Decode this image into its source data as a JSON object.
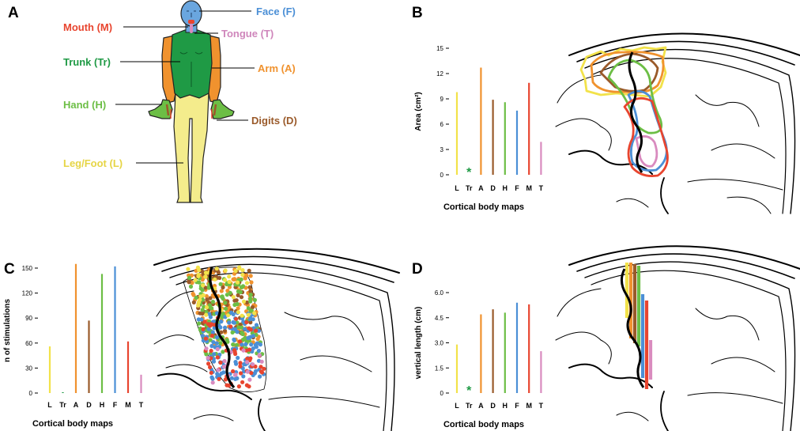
{
  "panels": {
    "a": "A",
    "b": "B",
    "c": "C",
    "d": "D"
  },
  "body_labels": {
    "face": "Face (F)",
    "mouth": "Mouth (M)",
    "tongue": "Tongue (T)",
    "trunk": "Trunk (Tr)",
    "arm": "Arm (A)",
    "hand": "Hand (H)",
    "digits": "Digits (D)",
    "leg": "Leg/Foot (L)"
  },
  "colors": {
    "L": "#f2e24a",
    "Tr": "#1f9a45",
    "A": "#f0922e",
    "D": "#9a5a2a",
    "H": "#6cbe45",
    "F": "#4b8fd6",
    "M": "#e8452f",
    "T": "#d98bbf",
    "skin_leg": "#f4ec8c",
    "skin_trunk": "#1f9a45",
    "skin_face": "#6aa6df"
  },
  "legend_note": "*",
  "chart_data": [
    {
      "panel": "B",
      "type": "bar",
      "categories": [
        "L",
        "Tr",
        "A",
        "D",
        "H",
        "F",
        "M",
        "T"
      ],
      "values": [
        9.8,
        null,
        12.7,
        8.9,
        8.6,
        7.6,
        10.9,
        3.9
      ],
      "ylabel": "Area (cm²)",
      "xlabel": "Cortical body maps",
      "ylim": [
        0,
        15
      ],
      "yticks": [
        "0",
        "3",
        "6",
        "9",
        "12",
        "15"
      ]
    },
    {
      "panel": "C",
      "type": "bar",
      "categories": [
        "L",
        "Tr",
        "A",
        "D",
        "H",
        "F",
        "M",
        "T"
      ],
      "values": [
        56,
        1,
        155,
        87,
        143,
        152,
        62,
        22
      ],
      "ylabel": "n of stimulations",
      "xlabel": "Cortical body maps",
      "ylim": [
        0,
        150
      ],
      "yticks": [
        "0",
        "30",
        "60",
        "90",
        "120",
        "150"
      ]
    },
    {
      "panel": "D",
      "type": "bar",
      "categories": [
        "L",
        "Tr",
        "A",
        "D",
        "H",
        "F",
        "M",
        "T"
      ],
      "values": [
        2.9,
        null,
        4.7,
        5.0,
        4.8,
        5.4,
        5.3,
        2.5
      ],
      "ylabel": "vertical length (cm)",
      "xlabel": "Cortical body maps",
      "ylim": [
        0,
        6.0
      ],
      "yticks": [
        "0",
        "1.5",
        "3.0",
        "4.5",
        "6.0"
      ]
    }
  ]
}
